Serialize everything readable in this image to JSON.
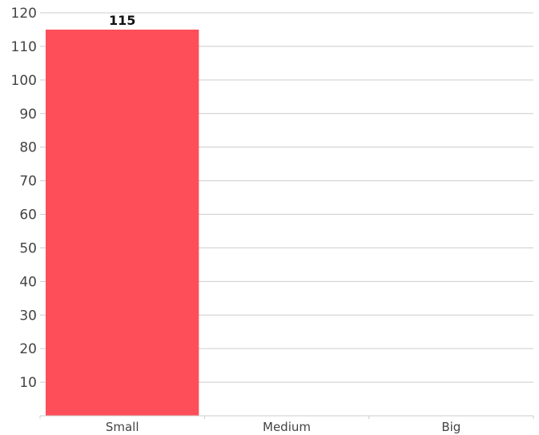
{
  "chart_data": {
    "type": "bar",
    "categories": [
      "Small",
      "Medium",
      "Big"
    ],
    "values": [
      115,
      null,
      null
    ],
    "data_labels": [
      "115",
      "",
      ""
    ],
    "title": "",
    "xlabel": "",
    "ylabel": "",
    "ylim": [
      0,
      120
    ],
    "yticks": [
      10,
      20,
      30,
      40,
      50,
      60,
      70,
      80,
      90,
      100,
      110,
      120
    ],
    "grid": true,
    "legend": "none",
    "bar_color": "#fe4e5a"
  }
}
